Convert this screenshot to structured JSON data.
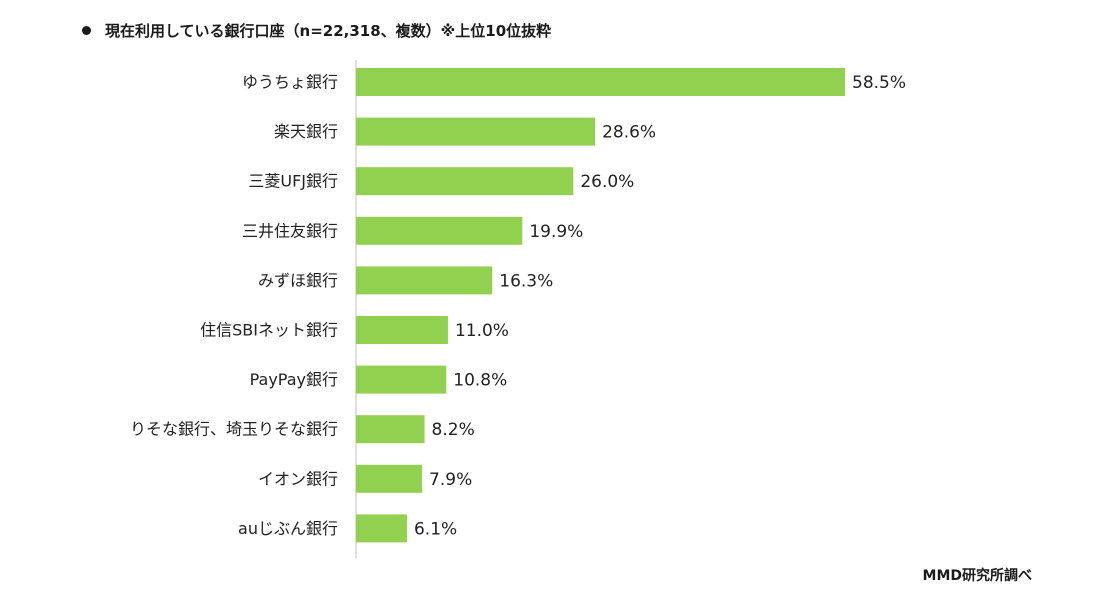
{
  "title": "現在利用している銀行口座（n=22,318、複数）※上位10位抜粋",
  "source": "MMD研究所調べ",
  "colors": {
    "bar": "#92d050",
    "axis": "#bfbfbf",
    "text": "#1a1a1a"
  },
  "chart_data": {
    "type": "bar",
    "orientation": "horizontal",
    "title": "現在利用している銀行口座（n=22,318、複数）※上位10位抜粋",
    "xlabel": "",
    "ylabel": "",
    "xlim": [
      0,
      58.5
    ],
    "grid": false,
    "legend": "none",
    "categories": [
      "ゆうちょ銀行",
      "楽天銀行",
      "三菱UFJ銀行",
      "三井住友銀行",
      "みずほ銀行",
      "住信SBIネット銀行",
      "PayPay銀行",
      "りそな銀行、埼玉りそな銀行",
      "イオン銀行",
      "auじぶん銀行"
    ],
    "values": [
      58.5,
      28.6,
      26.0,
      19.9,
      16.3,
      11.0,
      10.8,
      8.2,
      7.9,
      6.1
    ],
    "value_labels": [
      "58.5%",
      "28.6%",
      "26.0%",
      "19.9%",
      "16.3%",
      "11.0%",
      "10.8%",
      "8.2%",
      "7.9%",
      "6.1%"
    ]
  }
}
